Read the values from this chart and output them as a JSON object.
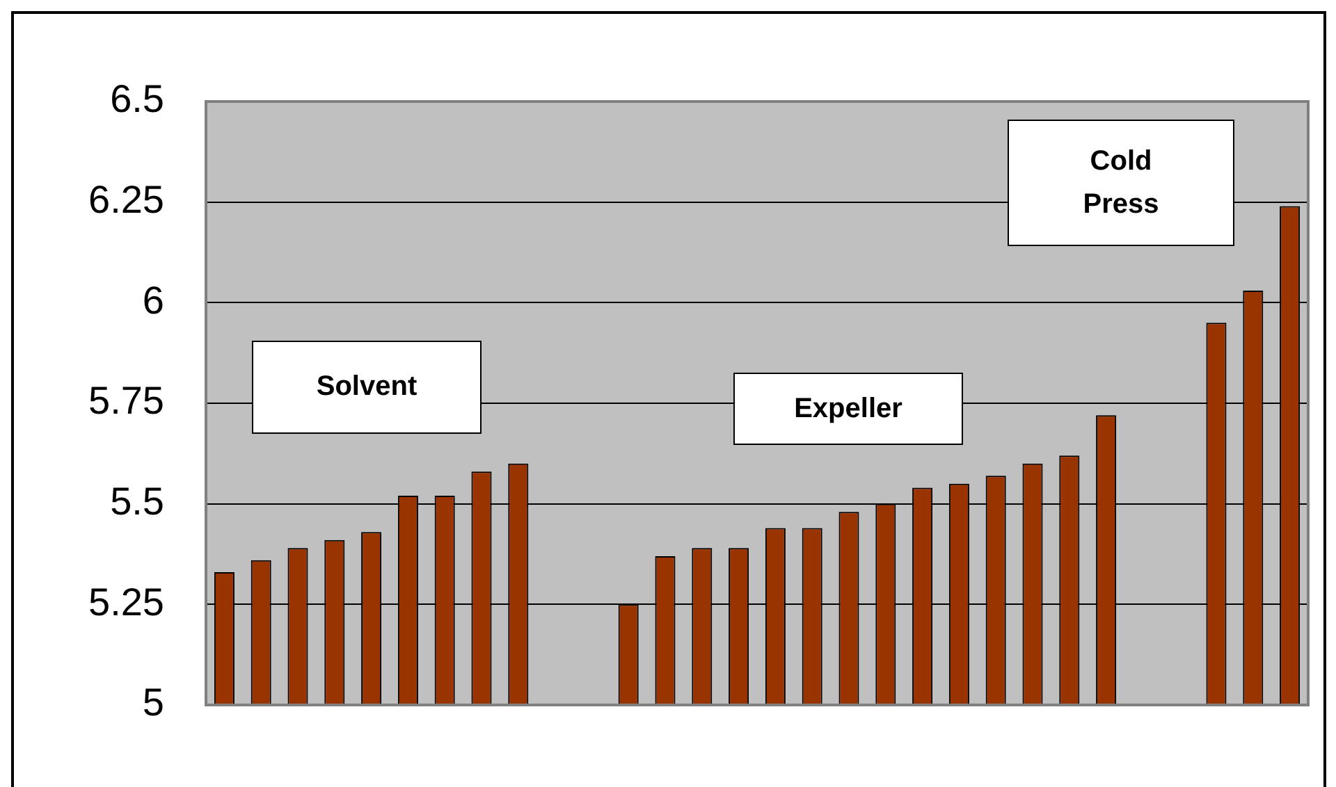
{
  "chart_data": {
    "type": "bar",
    "categories": [
      null,
      null,
      null,
      null,
      null,
      null,
      null,
      null,
      null,
      null,
      null,
      null,
      null,
      null,
      null,
      null,
      null,
      null,
      null,
      null,
      null,
      null,
      null,
      null,
      null,
      null,
      null,
      null,
      null,
      null
    ],
    "values": [
      5.33,
      5.36,
      5.39,
      5.41,
      5.43,
      5.52,
      5.52,
      5.58,
      5.6,
      null,
      null,
      5.25,
      5.37,
      5.39,
      5.39,
      5.44,
      5.44,
      5.48,
      5.5,
      5.54,
      5.55,
      5.57,
      5.6,
      5.62,
      5.72,
      null,
      null,
      5.95,
      6.03,
      6.24
    ],
    "color": "#993300",
    "ylim": [
      5,
      6.5
    ],
    "yticks": [
      5,
      5.25,
      5.5,
      5.75,
      6,
      6.25,
      6.5
    ],
    "grid": "y",
    "tick_labels": "y",
    "annotations": [
      "Solvent",
      "Expeller",
      "Cold Press"
    ]
  }
}
